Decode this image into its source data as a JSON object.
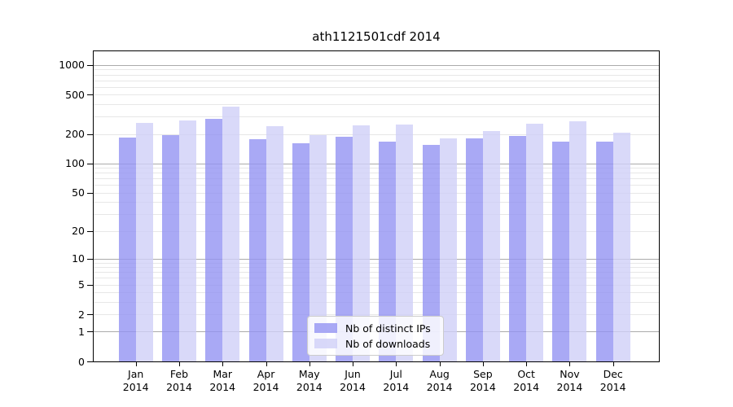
{
  "title": "ath1121501cdf 2014",
  "colors": {
    "bar_ips": "#9494f2",
    "bar_downloads": "#cfcff7",
    "bar_alpha": 0.8,
    "grid_major": "#ababab",
    "grid_minor": "#e7e7e7",
    "spine": "#000000",
    "text": "#000000",
    "legend_border": "#cccccc"
  },
  "chart_data": {
    "type": "bar",
    "title": "ath1121501cdf 2014",
    "categories": [
      "Jan 2014",
      "Feb 2014",
      "Mar 2014",
      "Apr 2014",
      "May 2014",
      "Jun 2014",
      "Jul 2014",
      "Aug 2014",
      "Sep 2014",
      "Oct 2014",
      "Nov 2014",
      "Dec 2014"
    ],
    "series": [
      {
        "name": "Nb of distinct IPs",
        "color": "#9494f2",
        "values": [
          184,
          196,
          284,
          176,
          162,
          187,
          167,
          155,
          181,
          190,
          168,
          166
        ]
      },
      {
        "name": "Nb of downloads",
        "color": "#cfcff7",
        "values": [
          260,
          275,
          380,
          238,
          194,
          243,
          249,
          179,
          212,
          254,
          270,
          206
        ]
      }
    ],
    "yscale": "log10(1+v)",
    "yticks": [
      0,
      1,
      2,
      5,
      10,
      20,
      50,
      100,
      200,
      500,
      1000
    ],
    "ylim": [
      0,
      1380
    ],
    "grid": true,
    "legend_position": "lower center"
  }
}
